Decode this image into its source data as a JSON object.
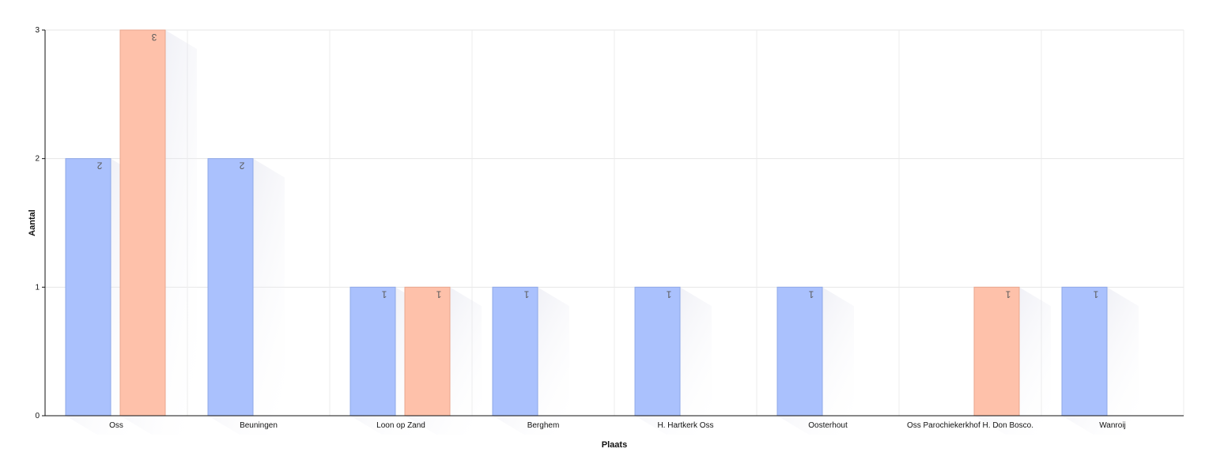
{
  "chart_data": {
    "type": "bar",
    "xlabel": "Plaats",
    "ylabel": "Aantal",
    "ylim": [
      0,
      3
    ],
    "yticks": [
      0,
      1,
      2,
      3
    ],
    "grid": true,
    "categories": [
      "Oss",
      "Beuningen",
      "Loon op Zand",
      "Berghem",
      "H. Hartkerk Oss",
      "Oosterhout",
      "Oss Parochiekerkhof H. Don Bosco.",
      "Wanroij"
    ],
    "series": [
      {
        "values": [
          2,
          2,
          1,
          1,
          1,
          1,
          0,
          1
        ],
        "color": "#aac1fd",
        "border": "#8fa9e8"
      },
      {
        "values": [
          3,
          0,
          1,
          0,
          0,
          0,
          1,
          0
        ],
        "color": "#fec1aa",
        "border": "#e9a68d"
      }
    ]
  }
}
